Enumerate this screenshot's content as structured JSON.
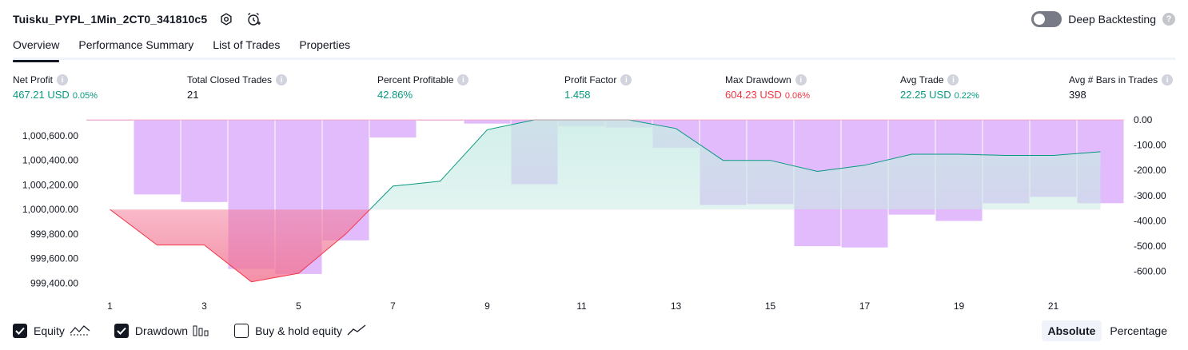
{
  "header": {
    "strategy_title": "Tuisku_PYPL_1Min_2CT0_341810c5",
    "deep_backtesting_label": "Deep Backtesting",
    "deep_backtesting_help": "?"
  },
  "tabs": [
    {
      "label": "Overview"
    },
    {
      "label": "Performance Summary"
    },
    {
      "label": "List of Trades"
    },
    {
      "label": "Properties"
    }
  ],
  "metrics": [
    {
      "label": "Net Profit",
      "value": "467.21 USD",
      "sub": "0.05%",
      "color": "green"
    },
    {
      "label": "Total Closed Trades",
      "value": "21",
      "sub": "",
      "color": "dark"
    },
    {
      "label": "Percent Profitable",
      "value": "42.86%",
      "sub": "",
      "color": "green"
    },
    {
      "label": "Profit Factor",
      "value": "1.458",
      "sub": "",
      "color": "green"
    },
    {
      "label": "Max Drawdown",
      "value": "604.23 USD",
      "sub": "0.06%",
      "color": "red"
    },
    {
      "label": "Avg Trade",
      "value": "22.25 USD",
      "sub": "0.22%",
      "color": "green"
    },
    {
      "label": "Avg # Bars in Trades",
      "value": "398",
      "sub": "",
      "color": "dark"
    }
  ],
  "chart_data": {
    "type": "line",
    "x": [
      1,
      2,
      3,
      4,
      5,
      6,
      7,
      8,
      9,
      10,
      11,
      12,
      13,
      14,
      15,
      16,
      17,
      18,
      19,
      20,
      21,
      22
    ],
    "x_ticks": [
      "1",
      "3",
      "5",
      "7",
      "9",
      "11",
      "13",
      "15",
      "17",
      "19",
      "21"
    ],
    "left_axis": {
      "ticks": [
        "1,000,600.00",
        "1,000,400.00",
        "1,000,200.00",
        "1,000,000.00",
        "999,800.00",
        "999,600.00",
        "999,400.00"
      ],
      "tick_values": [
        1000600,
        1000400,
        1000200,
        1000000,
        999800,
        999600,
        999400
      ],
      "ylim": [
        999330,
        1000730
      ]
    },
    "right_axis": {
      "ticks": [
        "0.00",
        "-100.00",
        "-200.00",
        "-300.00",
        "-400.00",
        "-500.00",
        "-600.00"
      ],
      "tick_values": [
        0,
        -100,
        -200,
        -300,
        -400,
        -500,
        -600
      ],
      "ylim": [
        -680,
        0
      ]
    },
    "baseline": 1000000,
    "series": [
      {
        "kind": "equity",
        "axis": "left",
        "values": [
          1000000,
          999710,
          999710,
          999410,
          999480,
          999800,
          1000190,
          1000230,
          1000650,
          1000730,
          1000730,
          1000730,
          1000660,
          1000400,
          1000400,
          1000310,
          1000360,
          1000450,
          1000450,
          1000440,
          1000440,
          1000470
        ]
      },
      {
        "kind": "drawdown",
        "axis": "right",
        "values": [
          -2,
          -295,
          -325,
          -590,
          -610,
          -477,
          -70,
          0,
          -15,
          -255,
          -25,
          -30,
          -110,
          -337,
          -333,
          -500,
          -505,
          -375,
          -400,
          -330,
          -305,
          -330
        ]
      }
    ],
    "colors": {
      "equity_above": "#089981",
      "equity_below": "#f23645",
      "drawdown_bar": "#e1bbfc",
      "area_above": "#c8ebe4",
      "area_below": "#f27593"
    }
  },
  "legend": [
    {
      "label": "Equity",
      "checked": true,
      "icon": "equity-line-icon"
    },
    {
      "label": "Drawdown",
      "checked": true,
      "icon": "drawdown-bars-icon"
    },
    {
      "label": "Buy & hold equity",
      "checked": false,
      "icon": "buy-hold-line-icon"
    }
  ],
  "view_modes": {
    "absolute": "Absolute",
    "percentage": "Percentage",
    "selected": "absolute"
  }
}
